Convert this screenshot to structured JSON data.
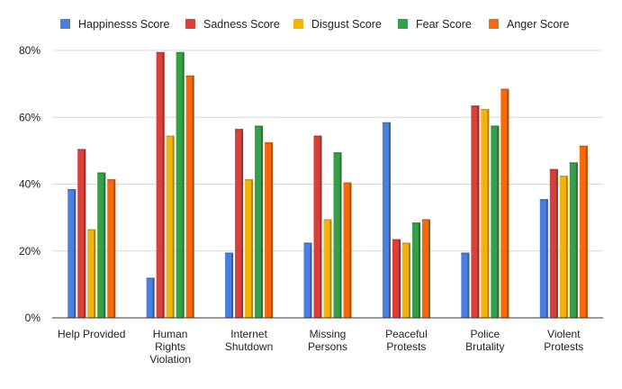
{
  "chart_data": {
    "type": "bar",
    "title": "",
    "xlabel": "",
    "ylabel": "",
    "ylim": [
      0,
      80
    ],
    "y_ticks": [
      "0%",
      "20%",
      "40%",
      "60%",
      "80%"
    ],
    "y_tick_values": [
      0,
      20,
      40,
      60,
      80
    ],
    "grid": true,
    "legend_position": "top",
    "categories": [
      [
        "Help Provided"
      ],
      [
        "Human",
        "Rights",
        "Violation"
      ],
      [
        "Internet",
        "Shutdown"
      ],
      [
        "Missing",
        "Persons"
      ],
      [
        "Peaceful",
        "Protests"
      ],
      [
        "Police",
        "Brutality"
      ],
      [
        "Violent",
        "Protests"
      ]
    ],
    "series": [
      {
        "name": "Happinesss Score",
        "color": "#4a7fe0",
        "values": [
          38.5,
          12,
          19.5,
          22.5,
          58.5,
          19.5,
          35.5
        ]
      },
      {
        "name": "Sadness Score",
        "color": "#d9403a",
        "values": [
          50.5,
          79.5,
          56.5,
          54.5,
          23.5,
          63.5,
          44.5
        ]
      },
      {
        "name": "Disgust Score",
        "color": "#f2b40a",
        "values": [
          26.5,
          54.5,
          41.5,
          29.5,
          22.5,
          62.5,
          42.5
        ]
      },
      {
        "name": "Fear Score",
        "color": "#35a047",
        "values": [
          43.5,
          79.5,
          57.5,
          49.5,
          28.5,
          57.5,
          46.5
        ]
      },
      {
        "name": "Anger Score",
        "color": "#f56a0c",
        "values": [
          41.5,
          72.5,
          52.5,
          40.5,
          29.5,
          68.5,
          51.5
        ]
      }
    ]
  }
}
